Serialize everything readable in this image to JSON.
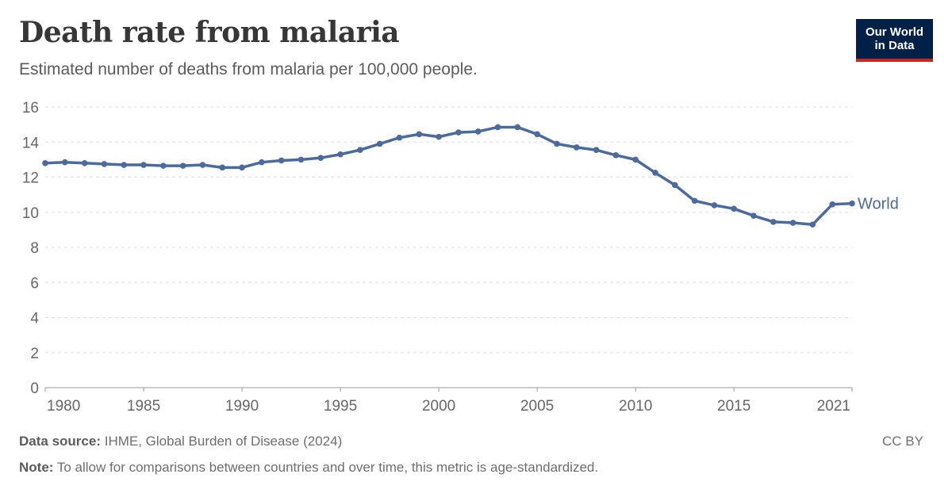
{
  "header": {
    "title": "Death rate from malaria",
    "subtitle": "Estimated number of deaths from malaria per 100,000 people."
  },
  "logo": {
    "line1": "Our World",
    "line2": "in Data"
  },
  "footer": {
    "source_label": "Data source:",
    "source_text": "IHME, Global Burden of Disease (2024)",
    "note_label": "Note:",
    "note_text": "To allow for comparisons between countries and over time, this metric is age-standardized.",
    "license": "CC BY"
  },
  "colors": {
    "series": "#4c6a9c",
    "grid": "#dddddd",
    "text": "#666666"
  },
  "chart_data": {
    "type": "line",
    "title": "Death rate from malaria",
    "ylim": [
      0,
      16
    ],
    "xlim": [
      1980,
      2021
    ],
    "yticks": [
      0,
      2,
      4,
      6,
      8,
      10,
      12,
      14,
      16
    ],
    "xticks": [
      "1980",
      "1985",
      "1990",
      "1995",
      "2000",
      "2005",
      "2010",
      "2015",
      "2021"
    ],
    "grid": true,
    "x": [
      1980,
      1981,
      1982,
      1983,
      1984,
      1985,
      1986,
      1987,
      1988,
      1989,
      1990,
      1991,
      1992,
      1993,
      1994,
      1995,
      1996,
      1997,
      1998,
      1999,
      2000,
      2001,
      2002,
      2003,
      2004,
      2005,
      2006,
      2007,
      2008,
      2009,
      2010,
      2011,
      2012,
      2013,
      2014,
      2015,
      2016,
      2017,
      2018,
      2019,
      2020,
      2021
    ],
    "series": [
      {
        "name": "World",
        "values": [
          12.8,
          12.85,
          12.8,
          12.75,
          12.7,
          12.7,
          12.65,
          12.65,
          12.7,
          12.55,
          12.55,
          12.85,
          12.95,
          13.0,
          13.1,
          13.3,
          13.55,
          13.9,
          14.25,
          14.45,
          14.3,
          14.55,
          14.6,
          14.85,
          14.85,
          14.45,
          13.9,
          13.7,
          13.55,
          13.25,
          13.0,
          12.25,
          11.55,
          10.65,
          10.4,
          10.2,
          9.8,
          9.45,
          9.4,
          9.3,
          10.45,
          10.5
        ]
      }
    ]
  }
}
